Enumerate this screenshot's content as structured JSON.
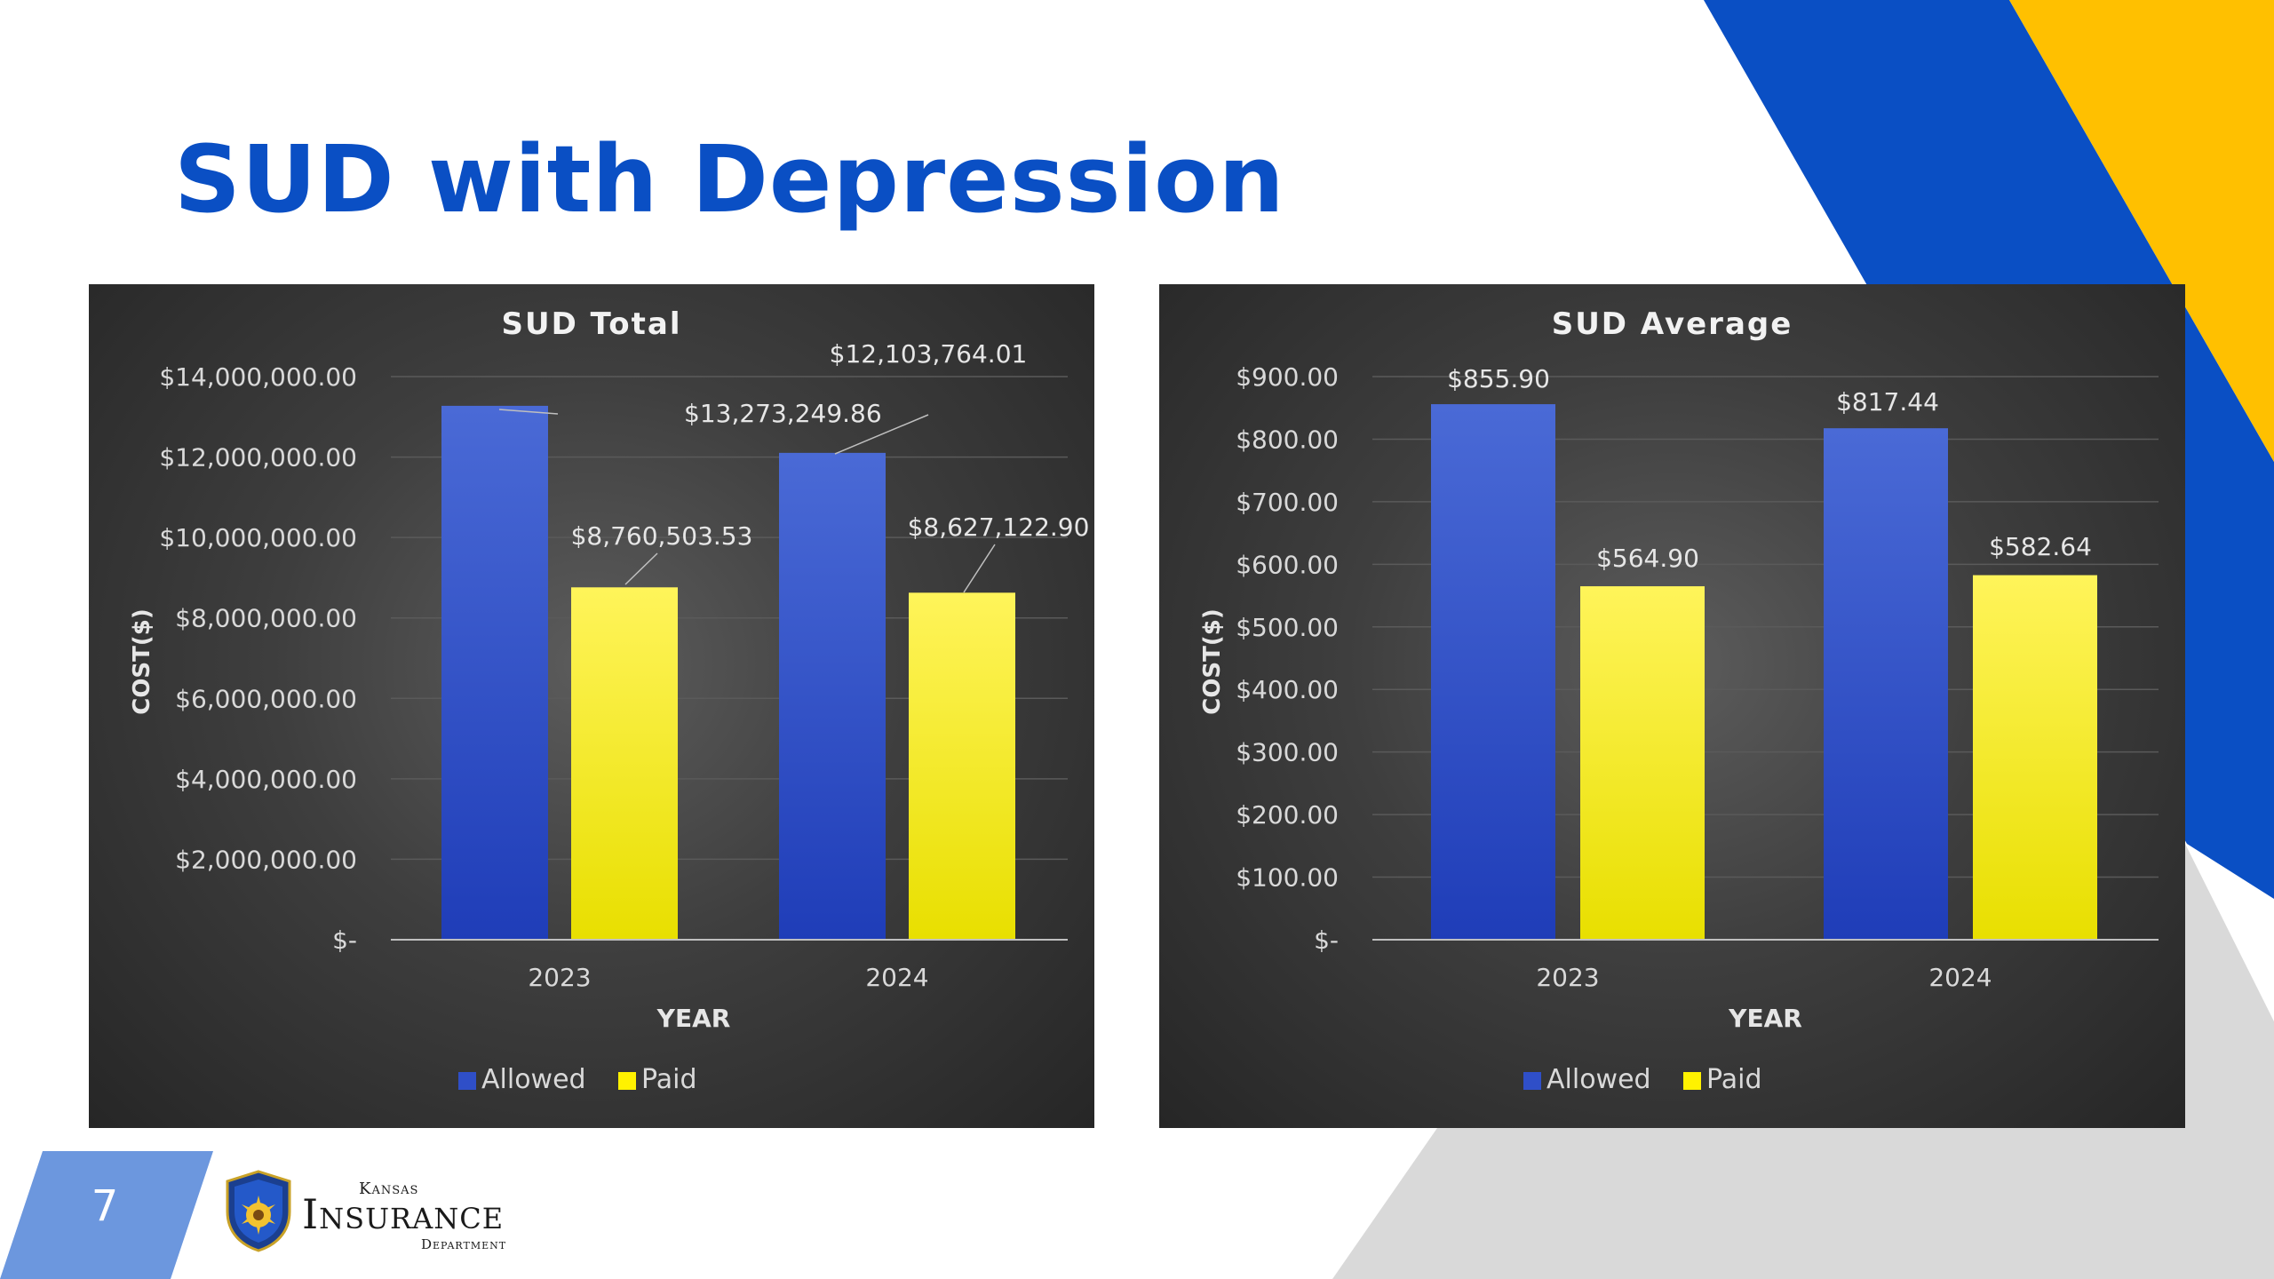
{
  "slide": {
    "title": "SUD with Depression",
    "page_number": "7",
    "logo": {
      "top": "Kansas",
      "main": "Insurance",
      "bottom": "Department"
    }
  },
  "colors": {
    "title": "#0A4FC4",
    "allowed": "#2F4FC8",
    "paid": "#FFF200",
    "panel_background": "#3A3A3A",
    "deco_blue": "#0A4FC4",
    "deco_yellow": "#FFC000",
    "deco_gray": "#D9D9D9",
    "page_box": "#6C97DE"
  },
  "chart_data": [
    {
      "type": "bar",
      "title": "SUD Total",
      "xlabel": "YEAR",
      "ylabel": "COST($)",
      "categories": [
        "2023",
        "2024"
      ],
      "series": [
        {
          "name": "Allowed",
          "values": [
            13273249.86,
            12103764.01
          ],
          "labels": [
            "$13,273,249.86",
            "$12,103,764.01"
          ]
        },
        {
          "name": "Paid",
          "values": [
            8760503.53,
            8627122.9
          ],
          "labels": [
            "$8,760,503.53",
            "$8,627,122.90"
          ]
        }
      ],
      "ylim": [
        0,
        14000000
      ],
      "yticks": [
        0,
        2000000,
        4000000,
        6000000,
        8000000,
        10000000,
        12000000,
        14000000
      ],
      "ytick_labels": [
        "$-",
        "$2,000,000.00",
        "$4,000,000.00",
        "$6,000,000.00",
        "$8,000,000.00",
        "$10,000,000.00",
        "$12,000,000.00",
        "$14,000,000.00"
      ],
      "grid": true,
      "legend": "bottom"
    },
    {
      "type": "bar",
      "title": "SUD Average",
      "xlabel": "YEAR",
      "ylabel": "COST($)",
      "categories": [
        "2023",
        "2024"
      ],
      "series": [
        {
          "name": "Allowed",
          "values": [
            855.9,
            817.44
          ],
          "labels": [
            "$855.90",
            "$817.44"
          ]
        },
        {
          "name": "Paid",
          "values": [
            564.9,
            582.64
          ],
          "labels": [
            "$564.90",
            "$582.64"
          ]
        }
      ],
      "ylim": [
        0,
        900
      ],
      "yticks": [
        0,
        100,
        200,
        300,
        400,
        500,
        600,
        700,
        800,
        900
      ],
      "ytick_labels": [
        "$-",
        "$100.00",
        "$200.00",
        "$300.00",
        "$400.00",
        "$500.00",
        "$600.00",
        "$700.00",
        "$800.00",
        "$900.00"
      ],
      "grid": true,
      "legend": "bottom"
    }
  ]
}
